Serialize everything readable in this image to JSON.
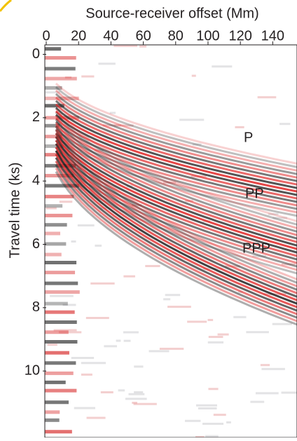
{
  "chart_data": {
    "type": "image",
    "x_label": "Source-receiver offset (Mm)",
    "y_label": "Travel time (ks)",
    "xlim": [
      0,
      155
    ],
    "xticks": [
      0,
      20,
      40,
      60,
      80,
      100,
      120,
      140
    ],
    "ylim": [
      -0.3,
      12.1
    ],
    "yticks": [
      0,
      2,
      4,
      6,
      8,
      10
    ],
    "annotations": [
      "P",
      "PP",
      "PPP"
    ]
  }
}
